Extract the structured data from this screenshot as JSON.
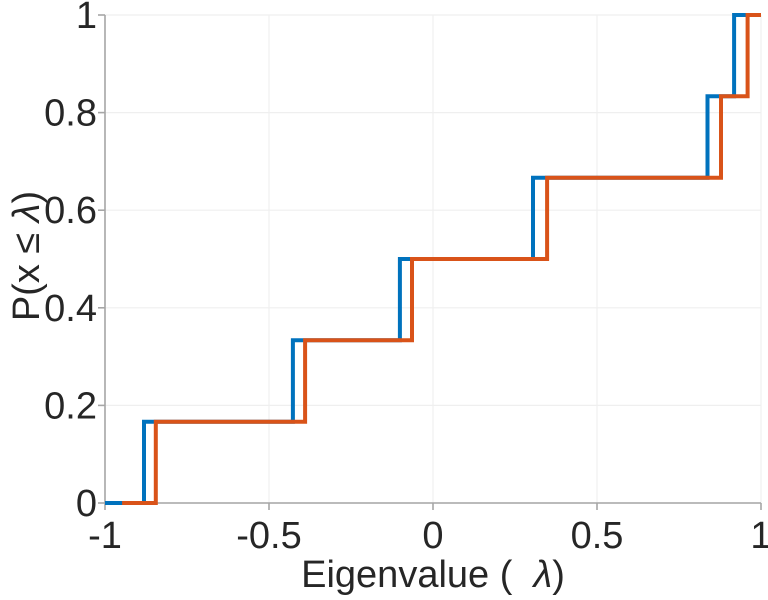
{
  "chart_data": {
    "type": "line",
    "subtype": "ecdf-stairs",
    "title": "",
    "xlabel": "Eigenvalue (  λ)",
    "ylabel": "P(x ≤ λ)",
    "xlabel_parts": {
      "pre": "Eigenvalue (  ",
      "math": "λ",
      "post": ")"
    },
    "ylabel_parts": {
      "pre": "P(x ≤ ",
      "math": "λ",
      "post": ")"
    },
    "xlim": [
      -1,
      1
    ],
    "ylim": [
      0,
      1
    ],
    "x_ticks": [
      -1,
      -0.5,
      0,
      0.5,
      1
    ],
    "x_tick_labels": [
      "-1",
      "-0.5",
      "0",
      "0.5",
      "1"
    ],
    "y_ticks": [
      0,
      0.2,
      0.4,
      0.6,
      0.8,
      1
    ],
    "y_tick_labels": [
      "0",
      "0.2",
      "0.4",
      "0.6",
      "0.8",
      "1"
    ],
    "grid": true,
    "legend": null,
    "colors": {
      "axis": "#a6a6a6",
      "grid": "#efefef",
      "text": "#262626"
    },
    "series": [
      {
        "name": "series-1-blue",
        "color": "#0072BD",
        "x_start": -1.0,
        "eigenvalues": [
          -0.881,
          -0.427,
          -0.101,
          0.305,
          0.837,
          0.918
        ],
        "cdf_levels": [
          0.1667,
          0.3333,
          0.5,
          0.6667,
          0.8333,
          1.0
        ],
        "x_end": 1.0
      },
      {
        "name": "series-2-orange",
        "color": "#D95319",
        "x_start": -0.948,
        "eigenvalues": [
          -0.845,
          -0.39,
          -0.064,
          0.348,
          0.878,
          0.959
        ],
        "cdf_levels": [
          0.1667,
          0.3333,
          0.5,
          0.6667,
          0.8333,
          1.0
        ],
        "x_end": 1.0
      }
    ]
  }
}
